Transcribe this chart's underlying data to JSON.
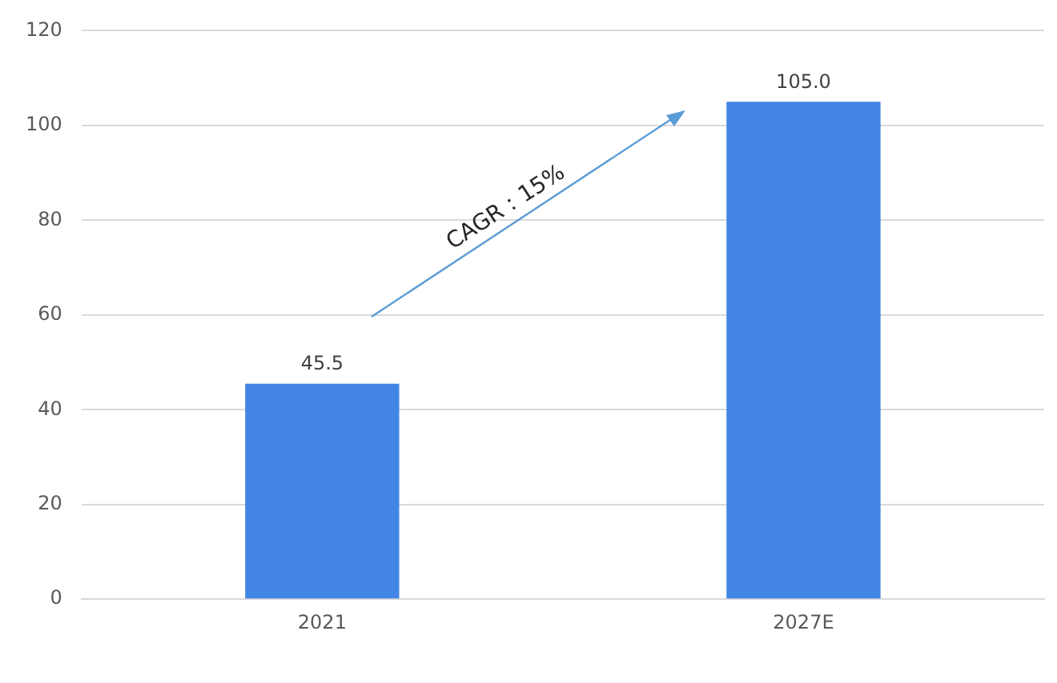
{
  "chart_data": {
    "type": "bar",
    "categories": [
      "2021",
      "2027E"
    ],
    "values": [
      45.5,
      105.0
    ],
    "color": "#4285e4",
    "value_labels": [
      "45.5",
      "105.0"
    ],
    "ylim": [
      0,
      120
    ],
    "yticks": [
      0,
      20,
      40,
      60,
      80,
      100,
      120
    ],
    "grid": "y",
    "legend": false,
    "annotations": [
      "CAGR：15%"
    ]
  }
}
